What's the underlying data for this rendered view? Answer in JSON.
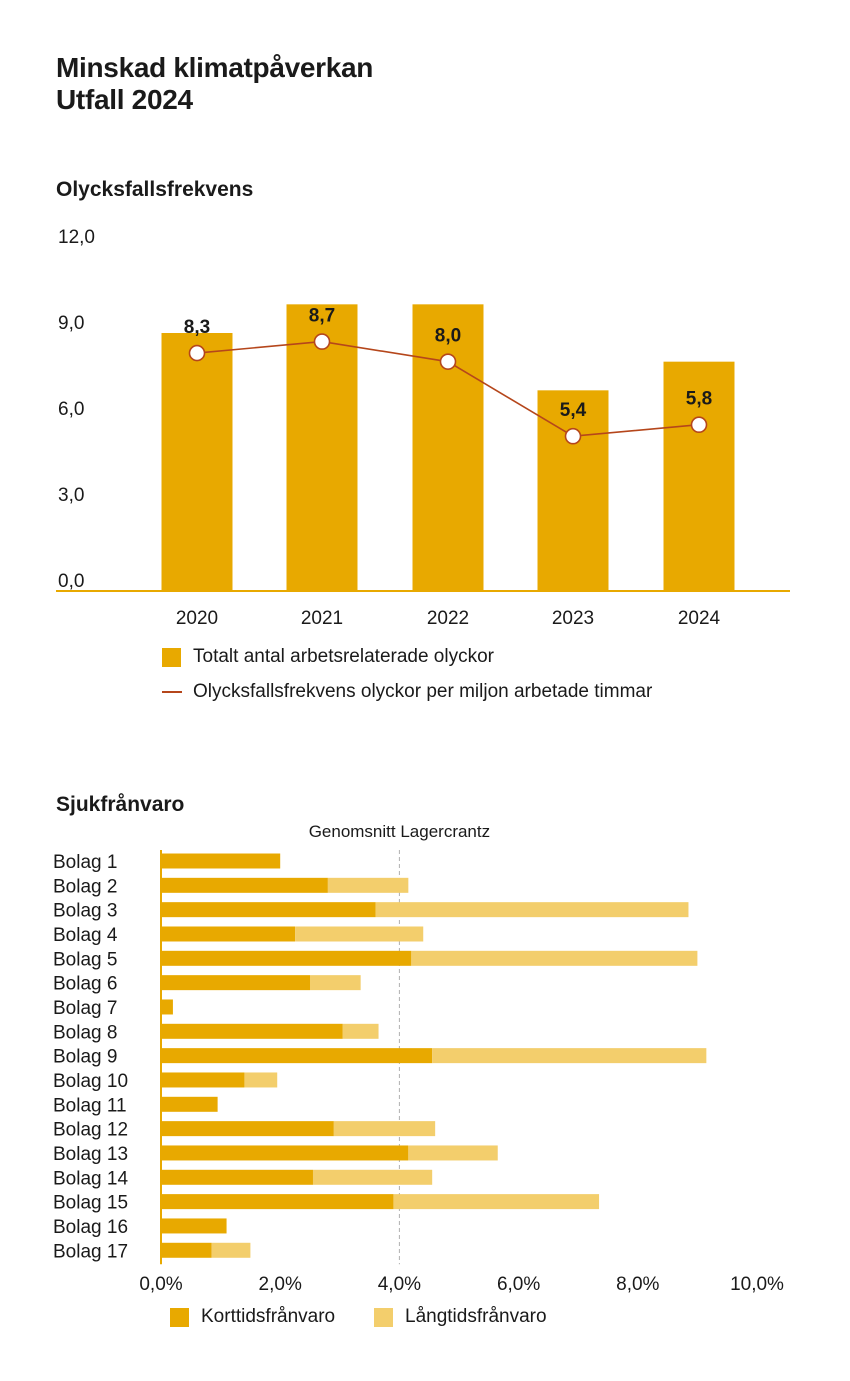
{
  "title_line1": "Minskad klimatpåverkan",
  "title_line2": "Utfall 2024",
  "colors": {
    "bar": "#e8a900",
    "line": "#b5461b",
    "short_term": "#e8a900",
    "long_term": "#f3ce6c",
    "axis": "#e8a900",
    "reference": "#b0b0b0"
  },
  "chart_data": [
    {
      "type": "bar",
      "title": "Olycksfallsfrekvens",
      "categories": [
        "2020",
        "2021",
        "2022",
        "2023",
        "2024"
      ],
      "ylim": [
        0,
        12
      ],
      "y_ticks": [
        "0,0",
        "3,0",
        "6,0",
        "9,0",
        "12,0"
      ],
      "grid": false,
      "series": [
        {
          "name": "Totalt antal arbetsrelaterade olyckor",
          "kind": "bar",
          "values": [
            9.0,
            10.0,
            10.0,
            7.0,
            8.0
          ]
        },
        {
          "name": "Olycksfallsfrekvens olyckor per miljon arbetade timmar",
          "kind": "line",
          "values": [
            8.3,
            8.7,
            8.0,
            5.4,
            5.8
          ],
          "labels": [
            "8,3",
            "8,7",
            "8,0",
            "5,4",
            "5,8"
          ]
        }
      ],
      "legend_position": "bottom"
    },
    {
      "type": "bar",
      "orientation": "horizontal",
      "stacked": true,
      "title": "Sjukfrånvaro",
      "categories": [
        "Bolag 1",
        "Bolag 2",
        "Bolag 3",
        "Bolag 4",
        "Bolag 5",
        "Bolag 6",
        "Bolag 7",
        "Bolag 8",
        "Bolag 9",
        "Bolag 10",
        "Bolag 11",
        "Bolag 12",
        "Bolag 13",
        "Bolag 14",
        "Bolag 15",
        "Bolag 16",
        "Bolag 17"
      ],
      "xlim": [
        0,
        10
      ],
      "x_ticks": [
        "0,0%",
        "2,0%",
        "4,0%",
        "6,0%",
        "8,0%",
        "10,0%"
      ],
      "reference_line": {
        "label": "Genomsnitt Lagercrantz",
        "value": 4.0
      },
      "series": [
        {
          "name": "Korttidsfrånvaro",
          "values": [
            2.0,
            2.8,
            3.6,
            2.25,
            4.2,
            2.5,
            0.2,
            3.05,
            4.55,
            1.4,
            0.95,
            2.9,
            4.15,
            2.55,
            3.9,
            1.1,
            0.85
          ]
        },
        {
          "name": "Långtidsfrånvaro",
          "values": [
            0.0,
            1.35,
            5.25,
            2.15,
            4.8,
            0.85,
            0.0,
            0.6,
            4.6,
            0.55,
            0.0,
            1.7,
            1.5,
            2.0,
            3.45,
            0.0,
            0.65
          ]
        }
      ],
      "legend_position": "bottom"
    }
  ]
}
